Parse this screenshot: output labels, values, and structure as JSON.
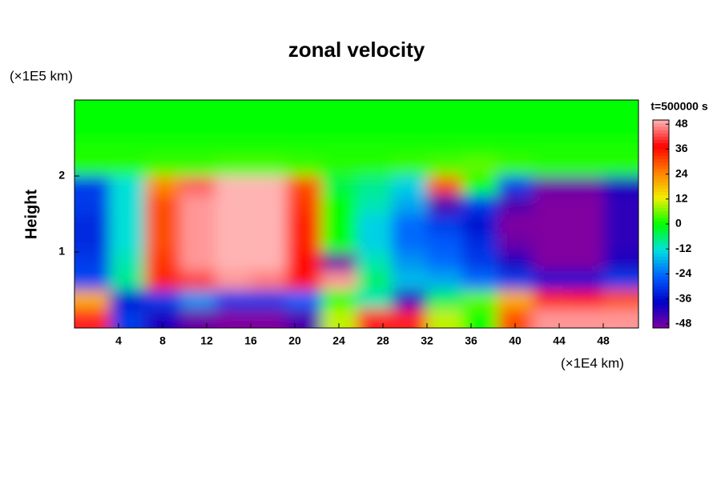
{
  "chart_data": {
    "type": "contour",
    "title": "zonal velocity",
    "xlabel": "(×1E4 km)",
    "ylabel": "Height",
    "yunit": "(×1E5 km)",
    "xlim": [
      0,
      51.2
    ],
    "ylim": [
      0,
      3
    ],
    "xticks": [
      4,
      8,
      12,
      16,
      20,
      24,
      28,
      32,
      36,
      40,
      44,
      48
    ],
    "yticks": [
      1,
      2
    ],
    "x": [
      1.6,
      4.8,
      8,
      11.2,
      14.4,
      17.6,
      20.8,
      24,
      27.2,
      30.4,
      33.6,
      36.8,
      40,
      43.2,
      46.4,
      49.6
    ],
    "y": [
      2.875,
      2.625,
      2.375,
      2.125,
      1.875,
      1.625,
      1.375,
      1.125,
      0.875,
      0.625,
      0.375,
      0.125
    ],
    "z": [
      [
        0,
        0,
        0,
        0,
        0,
        0,
        0,
        0,
        0,
        0,
        0,
        0,
        0,
        0,
        0,
        0
      ],
      [
        0,
        0,
        0,
        0,
        0,
        0,
        0,
        0,
        0,
        0,
        0,
        0,
        0,
        0,
        0,
        0
      ],
      [
        1,
        1,
        1,
        1,
        1,
        1,
        1,
        1,
        1,
        1,
        1,
        1,
        1,
        1,
        1,
        1
      ],
      [
        2,
        2,
        3,
        3,
        4,
        4,
        3,
        2,
        2,
        3,
        4,
        5,
        3,
        2,
        2,
        2
      ],
      [
        -30,
        -12,
        24,
        44,
        50,
        50,
        30,
        -4,
        -8,
        -14,
        30,
        0,
        -30,
        -48,
        -48,
        -40
      ],
      [
        -30,
        -12,
        30,
        48,
        50,
        50,
        32,
        0,
        -10,
        -18,
        -45,
        -30,
        -45,
        -50,
        -50,
        -42
      ],
      [
        -32,
        -12,
        30,
        48,
        50,
        50,
        34,
        0,
        -14,
        -24,
        -30,
        -36,
        -50,
        -50,
        -50,
        -42
      ],
      [
        -32,
        -12,
        30,
        48,
        50,
        50,
        34,
        0,
        -14,
        -24,
        -26,
        -32,
        -48,
        -50,
        -50,
        -42
      ],
      [
        -30,
        -10,
        32,
        48,
        50,
        50,
        36,
        -48,
        -10,
        -20,
        -24,
        -30,
        -40,
        -50,
        -50,
        -40
      ],
      [
        -28,
        -8,
        34,
        42,
        48,
        46,
        38,
        48,
        -6,
        -16,
        -18,
        -24,
        -30,
        -36,
        -36,
        -30
      ],
      [
        20,
        -35,
        -30,
        -20,
        -30,
        -30,
        -25,
        0,
        -10,
        -40,
        -5,
        5,
        20,
        35,
        36,
        30
      ],
      [
        40,
        -30,
        -40,
        -48,
        -50,
        -50,
        -45,
        10,
        40,
        40,
        10,
        0,
        30,
        48,
        48,
        48
      ]
    ],
    "colorbar": {
      "title": "t=500000 s",
      "lim": [
        -50,
        50
      ],
      "ticks": [
        48,
        36,
        24,
        12,
        0,
        -12,
        -24,
        -36,
        -48
      ],
      "colormap": [
        "#8000a0",
        "#0000c8",
        "#0060ff",
        "#00e0e0",
        "#00ff00",
        "#f0f000",
        "#ff8000",
        "#ff0000",
        "#ffb4b4"
      ]
    }
  }
}
